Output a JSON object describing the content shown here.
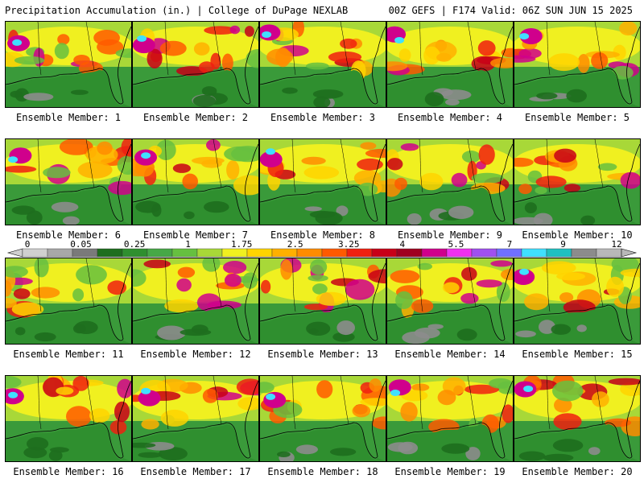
{
  "header": {
    "title": "Precipitation Accumulation (in.) | College of DuPage NEXLAB",
    "run_info": "00Z GEFS | F174 Valid: 06Z SUN JUN 15 2025"
  },
  "members": [
    {
      "label": "Ensemble Member: 1"
    },
    {
      "label": "Ensemble Member: 2"
    },
    {
      "label": "Ensemble Member: 3"
    },
    {
      "label": "Ensemble Member: 4"
    },
    {
      "label": "Ensemble Member: 5"
    },
    {
      "label": "Ensemble Member: 6"
    },
    {
      "label": "Ensemble Member: 7"
    },
    {
      "label": "Ensemble Member: 8"
    },
    {
      "label": "Ensemble Member: 9"
    },
    {
      "label": "Ensemble Member: 10"
    },
    {
      "label": "Ensemble Member: 11"
    },
    {
      "label": "Ensemble Member: 12"
    },
    {
      "label": "Ensemble Member: 13"
    },
    {
      "label": "Ensemble Member: 14"
    },
    {
      "label": "Ensemble Member: 15"
    },
    {
      "label": "Ensemble Member: 16"
    },
    {
      "label": "Ensemble Member: 17"
    },
    {
      "label": "Ensemble Member: 18"
    },
    {
      "label": "Ensemble Member: 19"
    },
    {
      "label": "Ensemble Member: 20"
    }
  ],
  "colorbar": {
    "labels": [
      "0",
      "0.05",
      "0.25",
      "1",
      "1.75",
      "2.5",
      "3.25",
      "4",
      "5.5",
      "7",
      "9",
      "12"
    ],
    "colors": [
      "#d0d0d0",
      "#a8a8a8",
      "#7a7a7a",
      "#1e6e1e",
      "#2f8f2f",
      "#47a847",
      "#66c040",
      "#a8d838",
      "#f0f020",
      "#ffd400",
      "#ffb000",
      "#ff8c00",
      "#ff5a00",
      "#f02010",
      "#c80018",
      "#a00020",
      "#d0008c",
      "#f030f0",
      "#a050f0",
      "#7070ff",
      "#40e0ff",
      "#20c0c0",
      "#8c8c8c",
      "#b8b8b8"
    ]
  }
}
